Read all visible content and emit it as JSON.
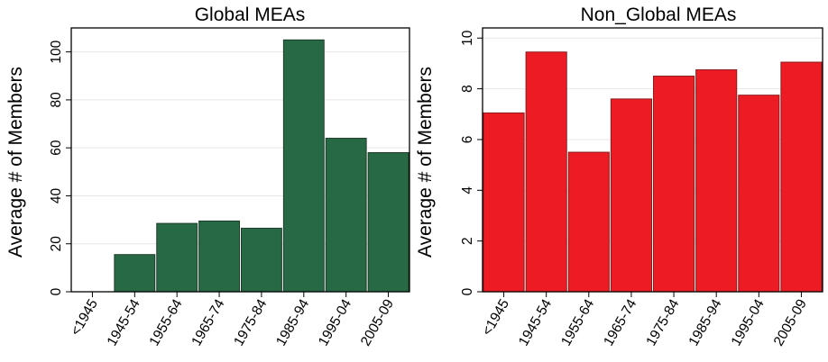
{
  "chart_data": [
    {
      "type": "bar",
      "title": "Global MEAs",
      "xlabel": "",
      "ylabel": "Average # of Members",
      "categories": [
        "<1945",
        "1945-54",
        "1955-64",
        "1965-74",
        "1975-84",
        "1985-94",
        "1995-04",
        "2005-09"
      ],
      "values": [
        0,
        15.5,
        28.5,
        29.5,
        26.5,
        105,
        64,
        58
      ],
      "ylim": [
        0,
        110
      ],
      "yticks": [
        0,
        20,
        40,
        60,
        80,
        100
      ],
      "grid": true,
      "colors": {
        "bar": "#276944",
        "bar_edge": "#1e3d2a"
      }
    },
    {
      "type": "bar",
      "title": "Non_Global MEAs",
      "xlabel": "",
      "ylabel": "Average # of Members",
      "categories": [
        "<1945",
        "1945-54",
        "1955-64",
        "1965-74",
        "1975-84",
        "1985-94",
        "1995-04",
        "2005-09"
      ],
      "values": [
        7.05,
        9.45,
        5.5,
        7.6,
        8.5,
        8.75,
        7.75,
        9.05
      ],
      "ylim": [
        0,
        10.4
      ],
      "yticks": [
        0,
        2,
        4,
        6,
        8,
        10
      ],
      "grid": true,
      "colors": {
        "bar": "#ed1c24",
        "bar_edge": "#8a1d1d"
      }
    }
  ]
}
